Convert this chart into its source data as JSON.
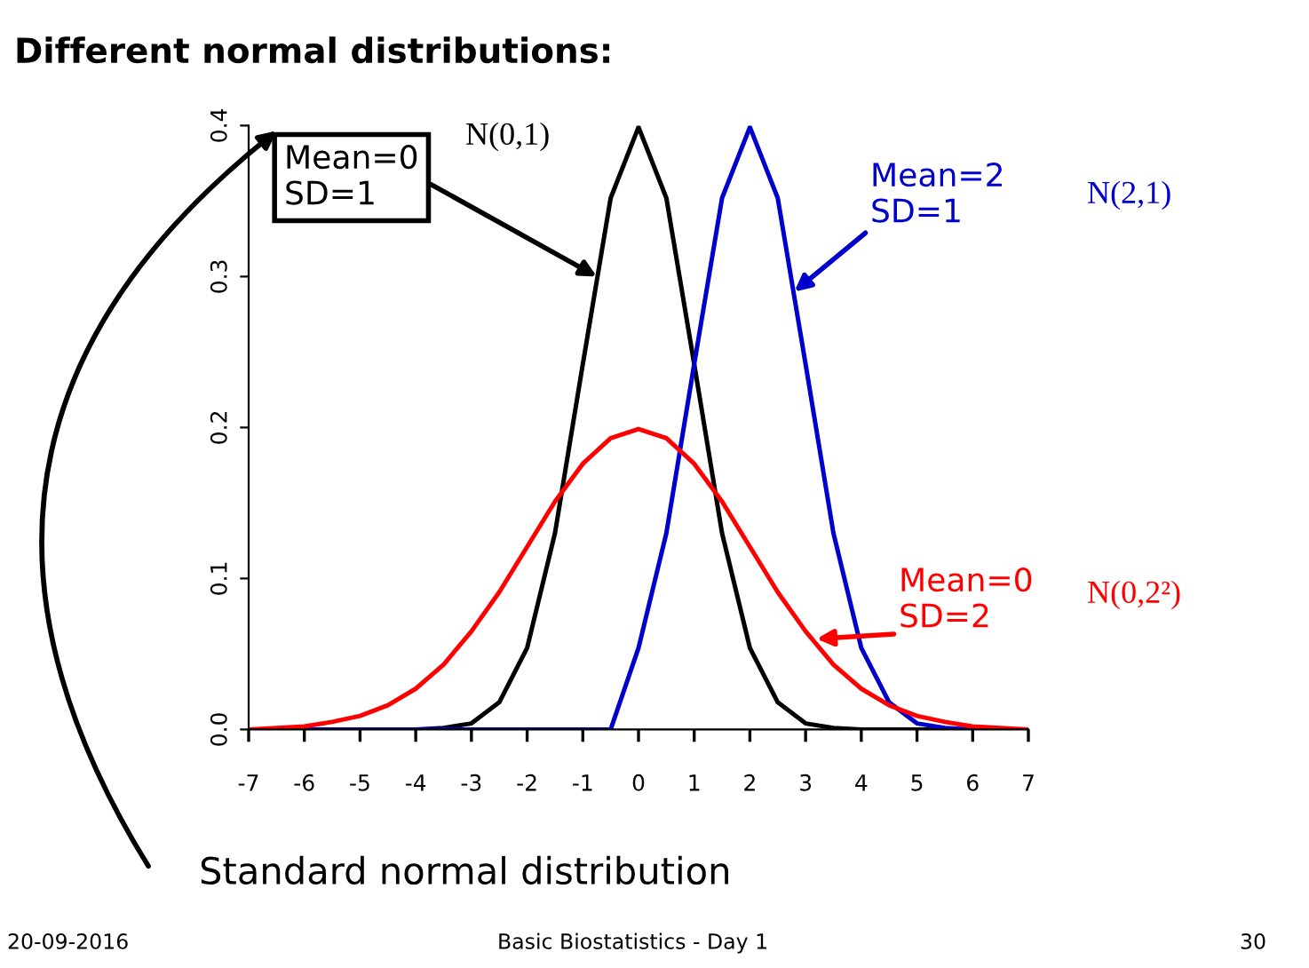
{
  "chart_data": {
    "type": "line",
    "title": "Different normal distributions:",
    "xlim": [
      -7,
      7
    ],
    "ylim": [
      0,
      0.4
    ],
    "xticks": [
      -7,
      -6,
      -5,
      -4,
      -3,
      -2,
      -1,
      0,
      1,
      2,
      3,
      4,
      5,
      6,
      7
    ],
    "yticks": [
      {
        "value": 0,
        "label": "0.0"
      },
      0.1,
      0.2,
      0.3,
      0.4
    ],
    "x": [
      -7,
      -6.5,
      -6,
      -5.5,
      -5,
      -4.5,
      -4,
      -3.5,
      -3,
      -2.5,
      -2,
      -1.5,
      -1,
      -0.5,
      0,
      0.5,
      1,
      1.5,
      2,
      2.5,
      3,
      3.5,
      4,
      4.5,
      5,
      5.5,
      6,
      6.5,
      7
    ],
    "series": [
      {
        "color": "#000000",
        "values": [
          0,
          0,
          0,
          0,
          0,
          0,
          0,
          0.001,
          0.004,
          0.018,
          0.054,
          0.13,
          0.242,
          0.352,
          0.399,
          0.352,
          0.242,
          0.13,
          0.054,
          0.018,
          0.004,
          0.001,
          0,
          0,
          0,
          0,
          0,
          0,
          0
        ]
      },
      {
        "color": "#0000cc",
        "values": [
          0,
          0,
          0,
          0,
          0,
          0,
          0,
          0,
          0,
          0,
          0,
          0,
          0,
          0,
          0.054,
          0.13,
          0.242,
          0.352,
          0.399,
          0.352,
          0.242,
          0.13,
          0.054,
          0.018,
          0.004,
          0.001,
          0,
          0,
          0
        ]
      },
      {
        "color": "#ff0000",
        "values": [
          0,
          0.001,
          0.002,
          0.005,
          0.009,
          0.016,
          0.027,
          0.043,
          0.065,
          0.091,
          0.121,
          0.151,
          0.176,
          0.193,
          0.199,
          0.193,
          0.176,
          0.151,
          0.121,
          0.091,
          0.065,
          0.043,
          0.027,
          0.016,
          0.009,
          0.005,
          0.002,
          0.001,
          0
        ]
      }
    ],
    "annotations": [
      {
        "text": "Mean=0\nSD=1",
        "x": -0.75,
        "y": 0.3
      },
      "N(0,1)",
      {
        "text": "Mean=2\nSD=1",
        "x": 2.8,
        "y": 0.29
      },
      "N(2,1)",
      {
        "text": "Mean=0\nSD=2",
        "x": 3.2,
        "y": 0.06
      },
      "N(0,2²)",
      "Standard normal distribution",
      "20-09-2016",
      "Basic Biostatistics - Day 1",
      "30"
    ],
    "grid": false,
    "legend": false,
    "marker": "none",
    "line_style": "solid"
  }
}
